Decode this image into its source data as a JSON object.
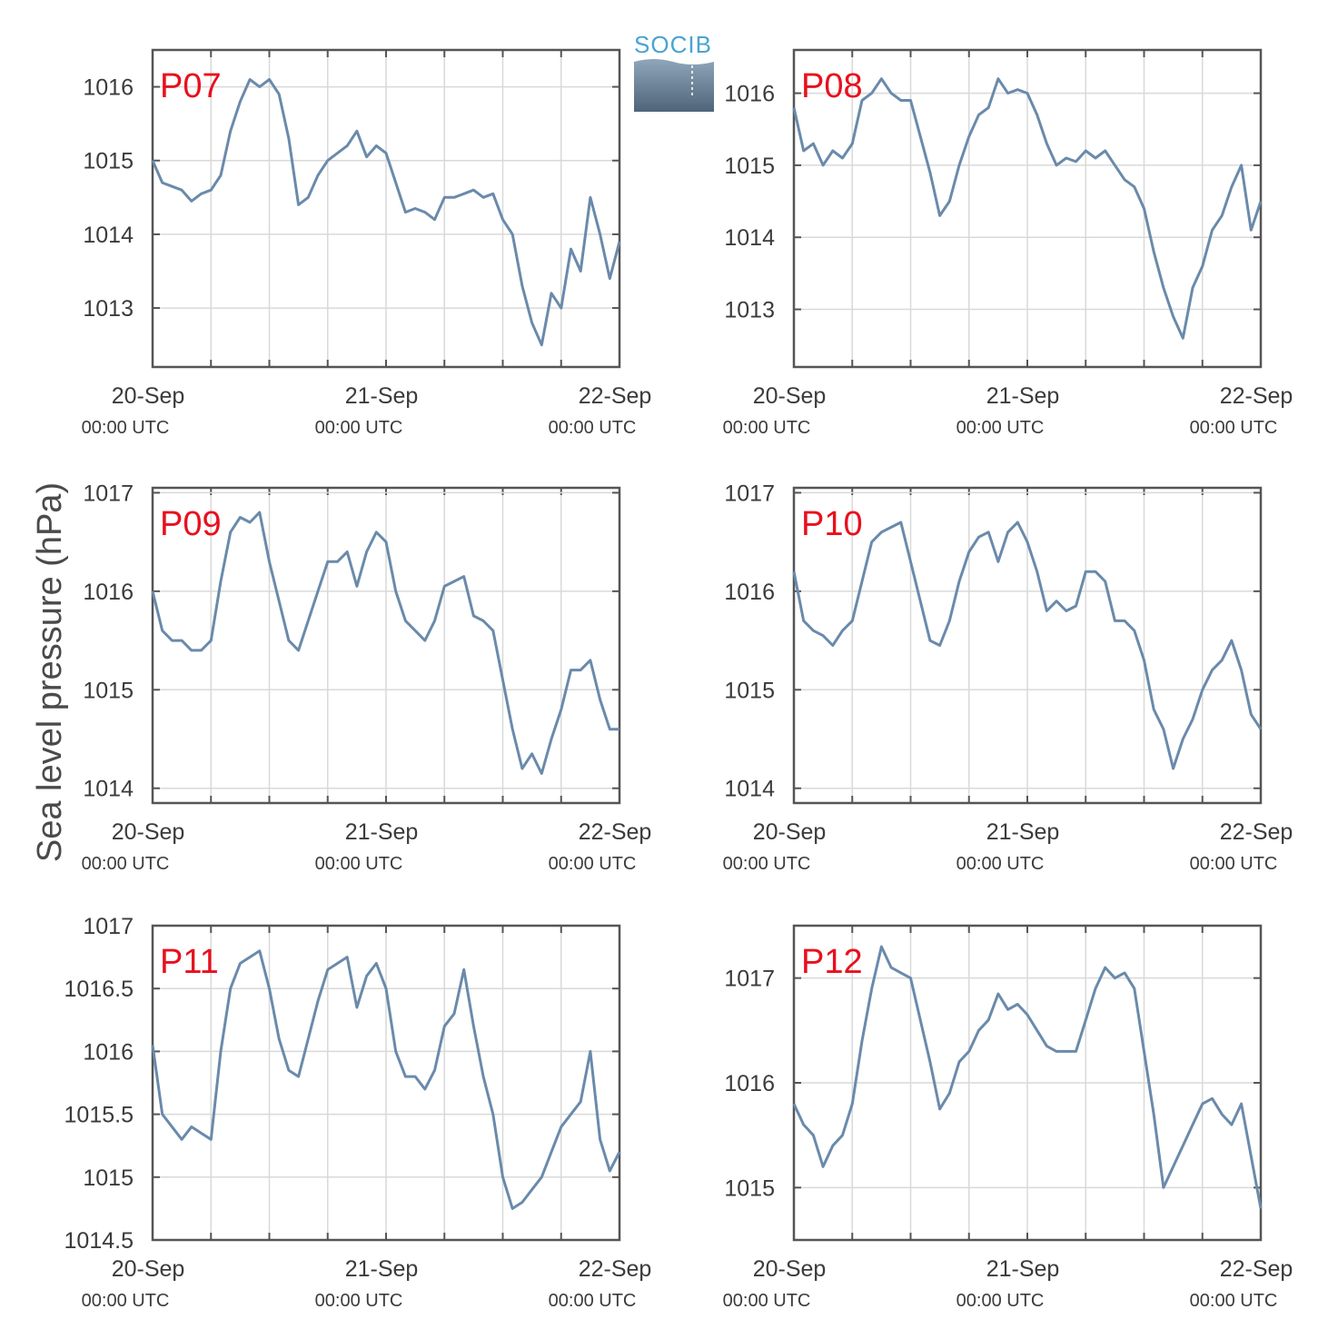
{
  "figure": {
    "ylabel": "Sea level pressure (hPa)",
    "logo_text": "SOCIB"
  },
  "colors": {
    "line": "#6a8aab",
    "panel_label": "#e8101e",
    "grid": "#d9d9d9",
    "frame": "#555555",
    "logo_text": "#4aa3d4",
    "logo_top": "#8fa6bb",
    "logo_bottom": "#4f6478"
  },
  "chart_data": [
    {
      "type": "line",
      "panel": "P07",
      "ylim": [
        1012.2,
        1016.5
      ],
      "yticks": [
        1013,
        1014,
        1015,
        1016
      ],
      "ytick_labels": [
        "1013",
        "1014",
        "1015",
        "1016"
      ],
      "xticks": [
        {
          "label": "20-Sep",
          "sublabel": "00:00 UTC",
          "t": 0
        },
        {
          "label": "21-Sep",
          "sublabel": "00:00 UTC",
          "t": 24
        },
        {
          "label": "22-Sep",
          "sublabel": "00:00 UTC",
          "t": 48
        }
      ],
      "xlim": [
        0,
        48
      ],
      "grid": true,
      "series": [
        {
          "x": [
            0,
            1,
            2,
            3,
            4,
            5,
            6,
            7,
            8,
            9,
            10,
            11,
            12,
            13,
            14,
            15,
            16,
            17,
            18,
            19,
            20,
            21,
            22,
            23,
            24,
            25,
            26,
            27,
            28,
            29,
            30,
            31,
            32,
            33,
            34,
            35,
            36,
            37,
            38,
            39,
            40,
            41,
            42,
            43,
            44,
            45,
            46,
            47,
            48
          ],
          "y": [
            1015.0,
            1014.7,
            1014.65,
            1014.6,
            1014.45,
            1014.55,
            1014.6,
            1014.8,
            1015.4,
            1015.8,
            1016.1,
            1016.0,
            1016.1,
            1015.9,
            1015.3,
            1014.4,
            1014.5,
            1014.8,
            1015.0,
            1015.1,
            1015.2,
            1015.4,
            1015.05,
            1015.2,
            1015.1,
            1014.7,
            1014.3,
            1014.35,
            1014.3,
            1014.2,
            1014.5,
            1014.5,
            1014.55,
            1014.6,
            1014.5,
            1014.55,
            1014.2,
            1014.0,
            1013.3,
            1012.8,
            1012.5,
            1013.2,
            1013.0,
            1013.8,
            1013.5,
            1014.5,
            1014.0,
            1013.4,
            1013.9
          ]
        }
      ]
    },
    {
      "type": "line",
      "panel": "P08",
      "ylim": [
        1012.2,
        1016.6
      ],
      "yticks": [
        1013,
        1014,
        1015,
        1016
      ],
      "ytick_labels": [
        "1013",
        "1014",
        "1015",
        "1016"
      ],
      "xticks": [
        {
          "label": "20-Sep",
          "sublabel": "00:00 UTC",
          "t": 0
        },
        {
          "label": "21-Sep",
          "sublabel": "00:00 UTC",
          "t": 24
        },
        {
          "label": "22-Sep",
          "sublabel": "00:00 UTC",
          "t": 48
        }
      ],
      "xlim": [
        0,
        48
      ],
      "grid": true,
      "series": [
        {
          "x": [
            0,
            1,
            2,
            3,
            4,
            5,
            6,
            7,
            8,
            9,
            10,
            11,
            12,
            13,
            14,
            15,
            16,
            17,
            18,
            19,
            20,
            21,
            22,
            23,
            24,
            25,
            26,
            27,
            28,
            29,
            30,
            31,
            32,
            33,
            34,
            35,
            36,
            37,
            38,
            39,
            40,
            41,
            42,
            43,
            44,
            45,
            46,
            47,
            48
          ],
          "y": [
            1015.8,
            1015.2,
            1015.3,
            1015.0,
            1015.2,
            1015.1,
            1015.3,
            1015.9,
            1016.0,
            1016.2,
            1016.0,
            1015.9,
            1015.9,
            1015.4,
            1014.9,
            1014.3,
            1014.5,
            1015.0,
            1015.4,
            1015.7,
            1015.8,
            1016.2,
            1016.0,
            1016.05,
            1016.0,
            1015.7,
            1015.3,
            1015.0,
            1015.1,
            1015.05,
            1015.2,
            1015.1,
            1015.2,
            1015.0,
            1014.8,
            1014.7,
            1014.4,
            1013.8,
            1013.3,
            1012.9,
            1012.6,
            1013.3,
            1013.6,
            1014.1,
            1014.3,
            1014.7,
            1015.0,
            1014.1,
            1014.5
          ]
        }
      ]
    },
    {
      "type": "line",
      "panel": "P09",
      "ylim": [
        1013.85,
        1017.05
      ],
      "yticks": [
        1014,
        1015,
        1016,
        1017
      ],
      "ytick_labels": [
        "1014",
        "1015",
        "1016",
        "1017"
      ],
      "xticks": [
        {
          "label": "20-Sep",
          "sublabel": "00:00 UTC",
          "t": 0
        },
        {
          "label": "21-Sep",
          "sublabel": "00:00 UTC",
          "t": 24
        },
        {
          "label": "22-Sep",
          "sublabel": "00:00 UTC",
          "t": 48
        }
      ],
      "xlim": [
        0,
        48
      ],
      "grid": true,
      "series": [
        {
          "x": [
            0,
            1,
            2,
            3,
            4,
            5,
            6,
            7,
            8,
            9,
            10,
            11,
            12,
            13,
            14,
            15,
            16,
            17,
            18,
            19,
            20,
            21,
            22,
            23,
            24,
            25,
            26,
            27,
            28,
            29,
            30,
            31,
            32,
            33,
            34,
            35,
            36,
            37,
            38,
            39,
            40,
            41,
            42,
            43,
            44,
            45,
            46,
            47,
            48
          ],
          "y": [
            1016.0,
            1015.6,
            1015.5,
            1015.5,
            1015.4,
            1015.4,
            1015.5,
            1016.1,
            1016.6,
            1016.75,
            1016.7,
            1016.8,
            1016.3,
            1015.9,
            1015.5,
            1015.4,
            1015.7,
            1016.0,
            1016.3,
            1016.3,
            1016.4,
            1016.05,
            1016.4,
            1016.6,
            1016.5,
            1016.0,
            1015.7,
            1015.6,
            1015.5,
            1015.7,
            1016.05,
            1016.1,
            1016.15,
            1015.75,
            1015.7,
            1015.6,
            1015.1,
            1014.6,
            1014.2,
            1014.35,
            1014.15,
            1014.5,
            1014.8,
            1015.2,
            1015.2,
            1015.3,
            1014.9,
            1014.6,
            1014.6
          ]
        }
      ]
    },
    {
      "type": "line",
      "panel": "P10",
      "ylim": [
        1013.85,
        1017.05
      ],
      "yticks": [
        1014,
        1015,
        1016,
        1017
      ],
      "ytick_labels": [
        "1014",
        "1015",
        "1016",
        "1017"
      ],
      "xticks": [
        {
          "label": "20-Sep",
          "sublabel": "00:00 UTC",
          "t": 0
        },
        {
          "label": "21-Sep",
          "sublabel": "00:00 UTC",
          "t": 24
        },
        {
          "label": "22-Sep",
          "sublabel": "00:00 UTC",
          "t": 48
        }
      ],
      "xlim": [
        0,
        48
      ],
      "grid": true,
      "series": [
        {
          "x": [
            0,
            1,
            2,
            3,
            4,
            5,
            6,
            7,
            8,
            9,
            10,
            11,
            12,
            13,
            14,
            15,
            16,
            17,
            18,
            19,
            20,
            21,
            22,
            23,
            24,
            25,
            26,
            27,
            28,
            29,
            30,
            31,
            32,
            33,
            34,
            35,
            36,
            37,
            38,
            39,
            40,
            41,
            42,
            43,
            44,
            45,
            46,
            47,
            48
          ],
          "y": [
            1016.2,
            1015.7,
            1015.6,
            1015.55,
            1015.45,
            1015.6,
            1015.7,
            1016.1,
            1016.5,
            1016.6,
            1016.65,
            1016.7,
            1016.3,
            1015.9,
            1015.5,
            1015.45,
            1015.7,
            1016.1,
            1016.4,
            1016.55,
            1016.6,
            1016.3,
            1016.6,
            1016.7,
            1016.5,
            1016.2,
            1015.8,
            1015.9,
            1015.8,
            1015.85,
            1016.2,
            1016.2,
            1016.1,
            1015.7,
            1015.7,
            1015.6,
            1015.3,
            1014.8,
            1014.6,
            1014.2,
            1014.5,
            1014.7,
            1015.0,
            1015.2,
            1015.3,
            1015.5,
            1015.2,
            1014.75,
            1014.6
          ]
        }
      ]
    },
    {
      "type": "line",
      "panel": "P11",
      "ylim": [
        1014.5,
        1017
      ],
      "yticks": [
        1014.5,
        1015,
        1015.5,
        1016,
        1016.5,
        1017
      ],
      "ytick_labels": [
        "1014.5",
        "1015",
        "1015.5",
        "1016",
        "1016.5",
        "1017"
      ],
      "xticks": [
        {
          "label": "20-Sep",
          "sublabel": "00:00 UTC",
          "t": 0
        },
        {
          "label": "21-Sep",
          "sublabel": "00:00 UTC",
          "t": 24
        },
        {
          "label": "22-Sep",
          "sublabel": "00:00 UTC",
          "t": 48
        }
      ],
      "xlim": [
        0,
        48
      ],
      "grid": true,
      "series": [
        {
          "x": [
            0,
            1,
            2,
            3,
            4,
            5,
            6,
            7,
            8,
            9,
            10,
            11,
            12,
            13,
            14,
            15,
            16,
            17,
            18,
            19,
            20,
            21,
            22,
            23,
            24,
            25,
            26,
            27,
            28,
            29,
            30,
            31,
            32,
            33,
            34,
            35,
            36,
            37,
            38,
            39,
            40,
            41,
            42,
            43,
            44,
            45,
            46,
            47,
            48
          ],
          "y": [
            1016.05,
            1015.5,
            1015.4,
            1015.3,
            1015.4,
            1015.35,
            1015.3,
            1016.0,
            1016.5,
            1016.7,
            1016.75,
            1016.8,
            1016.5,
            1016.1,
            1015.85,
            1015.8,
            1016.1,
            1016.4,
            1016.65,
            1016.7,
            1016.75,
            1016.35,
            1016.6,
            1016.7,
            1016.5,
            1016.0,
            1015.8,
            1015.8,
            1015.7,
            1015.85,
            1016.2,
            1016.3,
            1016.65,
            1016.2,
            1015.8,
            1015.5,
            1015.0,
            1014.75,
            1014.8,
            1014.9,
            1015.0,
            1015.2,
            1015.4,
            1015.5,
            1015.6,
            1016.0,
            1015.3,
            1015.05,
            1015.2
          ]
        }
      ]
    },
    {
      "type": "line",
      "panel": "P12",
      "ylim": [
        1014.5,
        1017.5
      ],
      "yticks": [
        1015,
        1016,
        1017
      ],
      "ytick_labels": [
        "1015",
        "1016",
        "1017"
      ],
      "xticks": [
        {
          "label": "20-Sep",
          "sublabel": "00:00 UTC",
          "t": 0
        },
        {
          "label": "21-Sep",
          "sublabel": "00:00 UTC",
          "t": 24
        },
        {
          "label": "22-Sep",
          "sublabel": "00:00 UTC",
          "t": 48
        }
      ],
      "xlim": [
        0,
        48
      ],
      "grid": true,
      "series": [
        {
          "x": [
            0,
            1,
            2,
            3,
            4,
            5,
            6,
            7,
            8,
            9,
            10,
            11,
            12,
            13,
            14,
            15,
            16,
            17,
            18,
            19,
            20,
            21,
            22,
            23,
            24,
            25,
            26,
            27,
            28,
            29,
            30,
            31,
            32,
            33,
            34,
            35,
            36,
            37,
            38,
            39,
            40,
            41,
            42,
            43,
            44,
            45,
            46,
            47,
            48
          ],
          "y": [
            1015.8,
            1015.6,
            1015.5,
            1015.2,
            1015.4,
            1015.5,
            1015.8,
            1016.4,
            1016.9,
            1017.3,
            1017.1,
            1017.05,
            1017.0,
            1016.6,
            1016.2,
            1015.75,
            1015.9,
            1016.2,
            1016.3,
            1016.5,
            1016.6,
            1016.85,
            1016.7,
            1016.75,
            1016.65,
            1016.5,
            1016.35,
            1016.3,
            1016.3,
            1016.3,
            1016.6,
            1016.9,
            1017.1,
            1017.0,
            1017.05,
            1016.9,
            1016.3,
            1015.7,
            1015.0,
            1015.2,
            1015.4,
            1015.6,
            1015.8,
            1015.85,
            1015.7,
            1015.6,
            1015.8,
            1015.3,
            1014.8
          ]
        }
      ]
    }
  ]
}
